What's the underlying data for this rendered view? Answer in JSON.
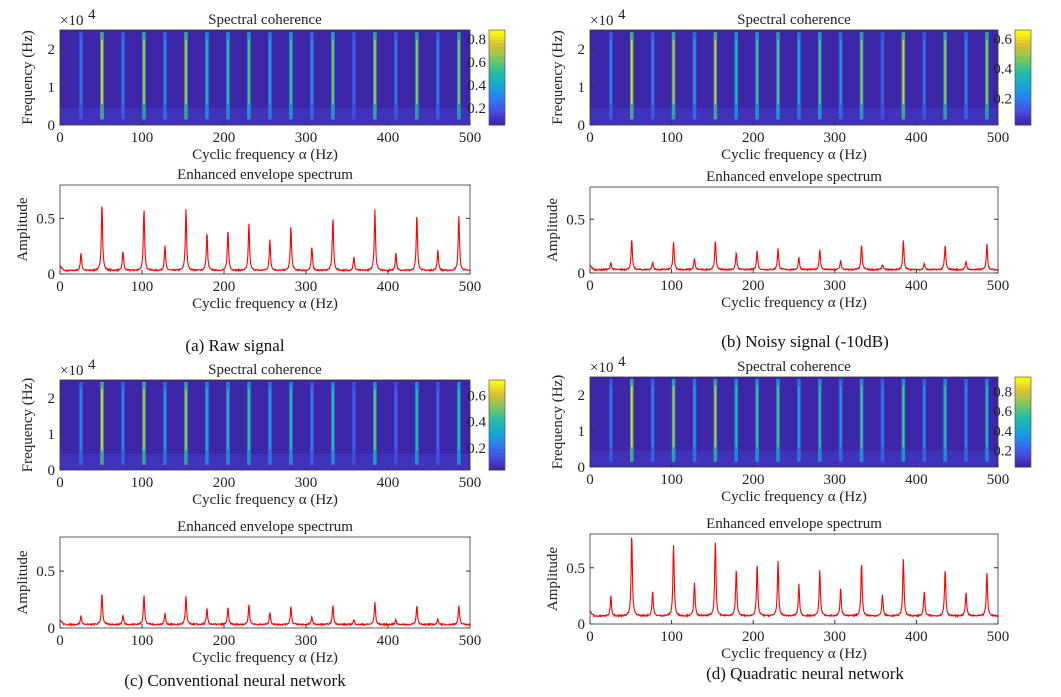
{
  "colors": {
    "spectrum_line": "#ff0000",
    "heatmap_low": "#3e26a8",
    "heatmap_high": "#f9fb0e",
    "axis": "#333333"
  },
  "chart_data": [
    {
      "caption": "(a) Raw signal",
      "heatmap": {
        "type": "heatmap",
        "title": "Spectral coherence",
        "xlabel": "Cyclic frequency α (Hz)",
        "ylabel": "Frequency (Hz)",
        "y_multiplier": "×10",
        "y_multiplier_exp": "4",
        "xlim": [
          0,
          500
        ],
        "ylim": [
          0,
          2.5
        ],
        "xticks": [
          0,
          100,
          200,
          300,
          400,
          500
        ],
        "yticks": [
          0,
          1,
          2
        ],
        "colorbar": {
          "range": [
            0.05,
            0.88
          ],
          "ticks": [
            0.2,
            0.4,
            0.6,
            0.8
          ],
          "colormap": "parula"
        }
      },
      "spectrum": {
        "type": "line",
        "title": "Enhanced envelope spectrum",
        "xlabel": "Cyclic frequency α (Hz)",
        "ylabel": "Amplitude",
        "xlim": [
          0,
          500
        ],
        "ylim": [
          0,
          0.8
        ],
        "xticks": [
          0,
          100,
          200,
          300,
          400,
          500
        ],
        "yticks": [
          0,
          0.5
        ],
        "baseline": 0.03,
        "peak_frequencies": [
          25.6,
          51.2,
          76.8,
          102.4,
          128,
          153.6,
          179.2,
          204.8,
          230.4,
          256,
          281.6,
          307.2,
          332.8,
          358.4,
          384,
          409.6,
          435.2,
          460.8,
          486.4
        ],
        "peak_values": [
          0.19,
          0.64,
          0.21,
          0.58,
          0.25,
          0.59,
          0.37,
          0.4,
          0.46,
          0.31,
          0.43,
          0.24,
          0.51,
          0.15,
          0.58,
          0.19,
          0.53,
          0.22,
          0.53
        ]
      }
    },
    {
      "caption": "(b) Noisy signal (-10dB)",
      "heatmap": {
        "type": "heatmap",
        "title": "Spectral coherence",
        "xlabel": "Cyclic frequency α (Hz)",
        "ylabel": "Frequency (Hz)",
        "y_multiplier": "×10",
        "y_multiplier_exp": "4",
        "xlim": [
          0,
          500
        ],
        "ylim": [
          0,
          2.5
        ],
        "xticks": [
          0,
          100,
          200,
          300,
          400,
          500
        ],
        "yticks": [
          0,
          1,
          2
        ],
        "colorbar": {
          "range": [
            0.02,
            0.66
          ],
          "ticks": [
            0.2,
            0.4,
            0.6
          ],
          "colormap": "parula"
        }
      },
      "spectrum": {
        "type": "line",
        "title": "Enhanced envelope spectrum",
        "xlabel": "Cyclic frequency α (Hz)",
        "ylabel": "Amplitude",
        "xlim": [
          0,
          500
        ],
        "ylim": [
          0,
          0.8
        ],
        "xticks": [
          0,
          100,
          200,
          300,
          400,
          500
        ],
        "yticks": [
          0,
          0.5
        ],
        "baseline": 0.03,
        "peak_frequencies": [
          25.6,
          51.2,
          76.8,
          102.4,
          128,
          153.6,
          179.2,
          204.8,
          230.4,
          256,
          281.6,
          307.2,
          332.8,
          358.4,
          384,
          409.6,
          435.2,
          460.8,
          486.4
        ],
        "peak_values": [
          0.1,
          0.31,
          0.1,
          0.29,
          0.13,
          0.3,
          0.19,
          0.21,
          0.23,
          0.15,
          0.22,
          0.12,
          0.26,
          0.08,
          0.3,
          0.09,
          0.26,
          0.11,
          0.27
        ]
      }
    },
    {
      "caption": "(c) Conventional neural network",
      "heatmap": {
        "type": "heatmap",
        "title": "Spectral coherence",
        "xlabel": "Cyclic frequency α (Hz)",
        "ylabel": "Frequency (Hz)",
        "y_multiplier": "×10",
        "y_multiplier_exp": "4",
        "xlim": [
          0,
          500
        ],
        "ylim": [
          0,
          2.5
        ],
        "xticks": [
          0,
          100,
          200,
          300,
          400,
          500
        ],
        "yticks": [
          0,
          1,
          2
        ],
        "colorbar": {
          "range": [
            0.03,
            0.72
          ],
          "ticks": [
            0.2,
            0.4,
            0.6
          ],
          "colormap": "parula"
        }
      },
      "spectrum": {
        "type": "line",
        "title": "Enhanced envelope spectrum",
        "xlabel": "Cyclic frequency α (Hz)",
        "ylabel": "Amplitude",
        "xlim": [
          0,
          500
        ],
        "ylim": [
          0,
          0.8
        ],
        "xticks": [
          0,
          100,
          200,
          300,
          400,
          500
        ],
        "yticks": [
          0,
          0.5
        ],
        "baseline": 0.03,
        "peak_frequencies": [
          25.6,
          51.2,
          76.8,
          102.4,
          128,
          153.6,
          179.2,
          204.8,
          230.4,
          256,
          281.6,
          307.2,
          332.8,
          358.4,
          384,
          409.6,
          435.2,
          460.8,
          486.4
        ],
        "peak_values": [
          0.11,
          0.31,
          0.11,
          0.29,
          0.13,
          0.28,
          0.17,
          0.18,
          0.21,
          0.14,
          0.19,
          0.1,
          0.2,
          0.07,
          0.23,
          0.07,
          0.2,
          0.08,
          0.2
        ]
      }
    },
    {
      "caption": "(d) Quadratic neural network",
      "heatmap": {
        "type": "heatmap",
        "title": "Spectral coherence",
        "xlabel": "Cyclic frequency α (Hz)",
        "ylabel": "Frequency (Hz)",
        "y_multiplier": "×10",
        "y_multiplier_exp": "4",
        "xlim": [
          0,
          500
        ],
        "ylim": [
          0,
          2.5
        ],
        "xticks": [
          0,
          100,
          200,
          300,
          400,
          500
        ],
        "yticks": [
          0,
          1,
          2
        ],
        "colorbar": {
          "range": [
            0.03,
            0.95
          ],
          "ticks": [
            0.2,
            0.4,
            0.6,
            0.8
          ],
          "colormap": "parula"
        }
      },
      "spectrum": {
        "type": "line",
        "title": "Enhanced envelope spectrum",
        "xlabel": "Cyclic frequency α (Hz)",
        "ylabel": "Amplitude",
        "xlim": [
          0,
          500
        ],
        "ylim": [
          0,
          0.8
        ],
        "xticks": [
          0,
          100,
          200,
          300,
          400,
          500
        ],
        "yticks": [
          0,
          0.5
        ],
        "baseline": 0.07,
        "peak_frequencies": [
          25.6,
          51.2,
          76.8,
          102.4,
          128,
          153.6,
          179.2,
          204.8,
          230.4,
          256,
          281.6,
          307.2,
          332.8,
          358.4,
          384,
          409.6,
          435.2,
          460.8,
          486.4
        ],
        "peak_values": [
          0.25,
          0.8,
          0.29,
          0.71,
          0.36,
          0.73,
          0.49,
          0.53,
          0.56,
          0.36,
          0.48,
          0.32,
          0.55,
          0.26,
          0.57,
          0.29,
          0.49,
          0.29,
          0.46
        ]
      }
    }
  ]
}
